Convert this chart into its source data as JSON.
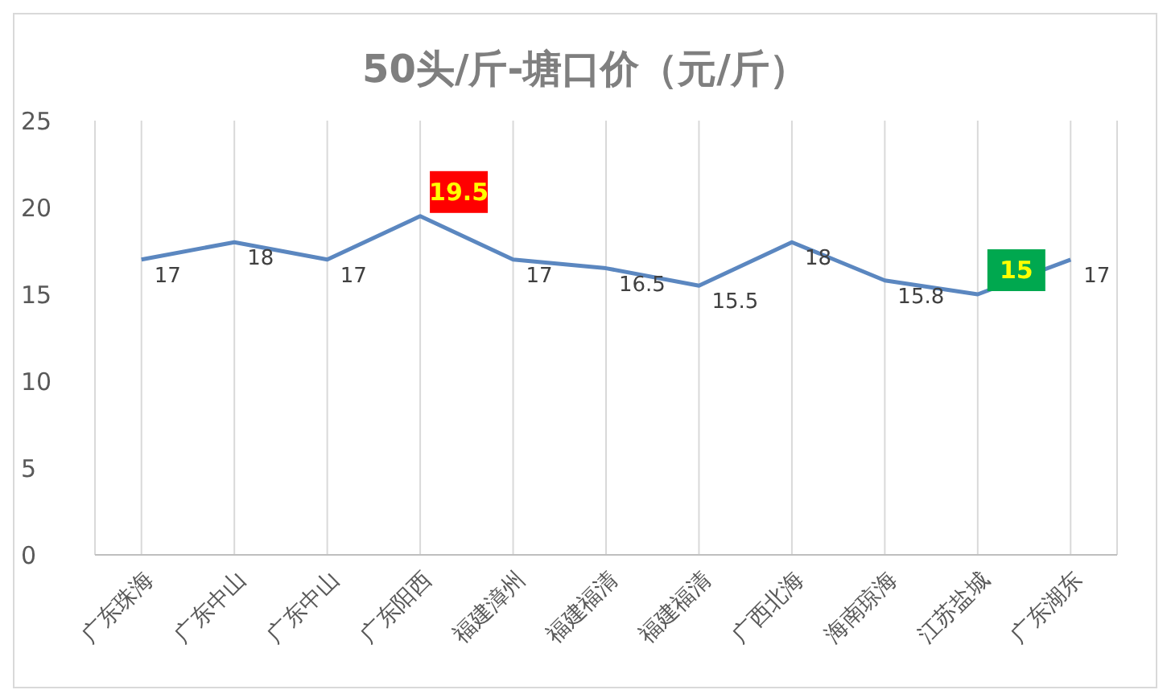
{
  "chart_data": {
    "type": "line",
    "title": "50头/斤-塘口价（元/斤）",
    "categories": [
      "广东珠海",
      "广东中山",
      "广东中山",
      "广东阳西",
      "福建漳州",
      "福建福清",
      "福建福清",
      "广西北海",
      "海南琼海",
      "江苏盐城",
      "广东湖东"
    ],
    "series": [
      {
        "color": "#5b87c0",
        "values": [
          17,
          18,
          17,
          19.5,
          17,
          16.5,
          15.5,
          18,
          15.8,
          15,
          17
        ]
      }
    ],
    "ylim": [
      0,
      25
    ],
    "yticks": [
      0,
      5,
      10,
      15,
      20,
      25
    ],
    "grid": "x",
    "data_labels": true,
    "marker": "none",
    "line_style": "solid",
    "legend": false
  }
}
